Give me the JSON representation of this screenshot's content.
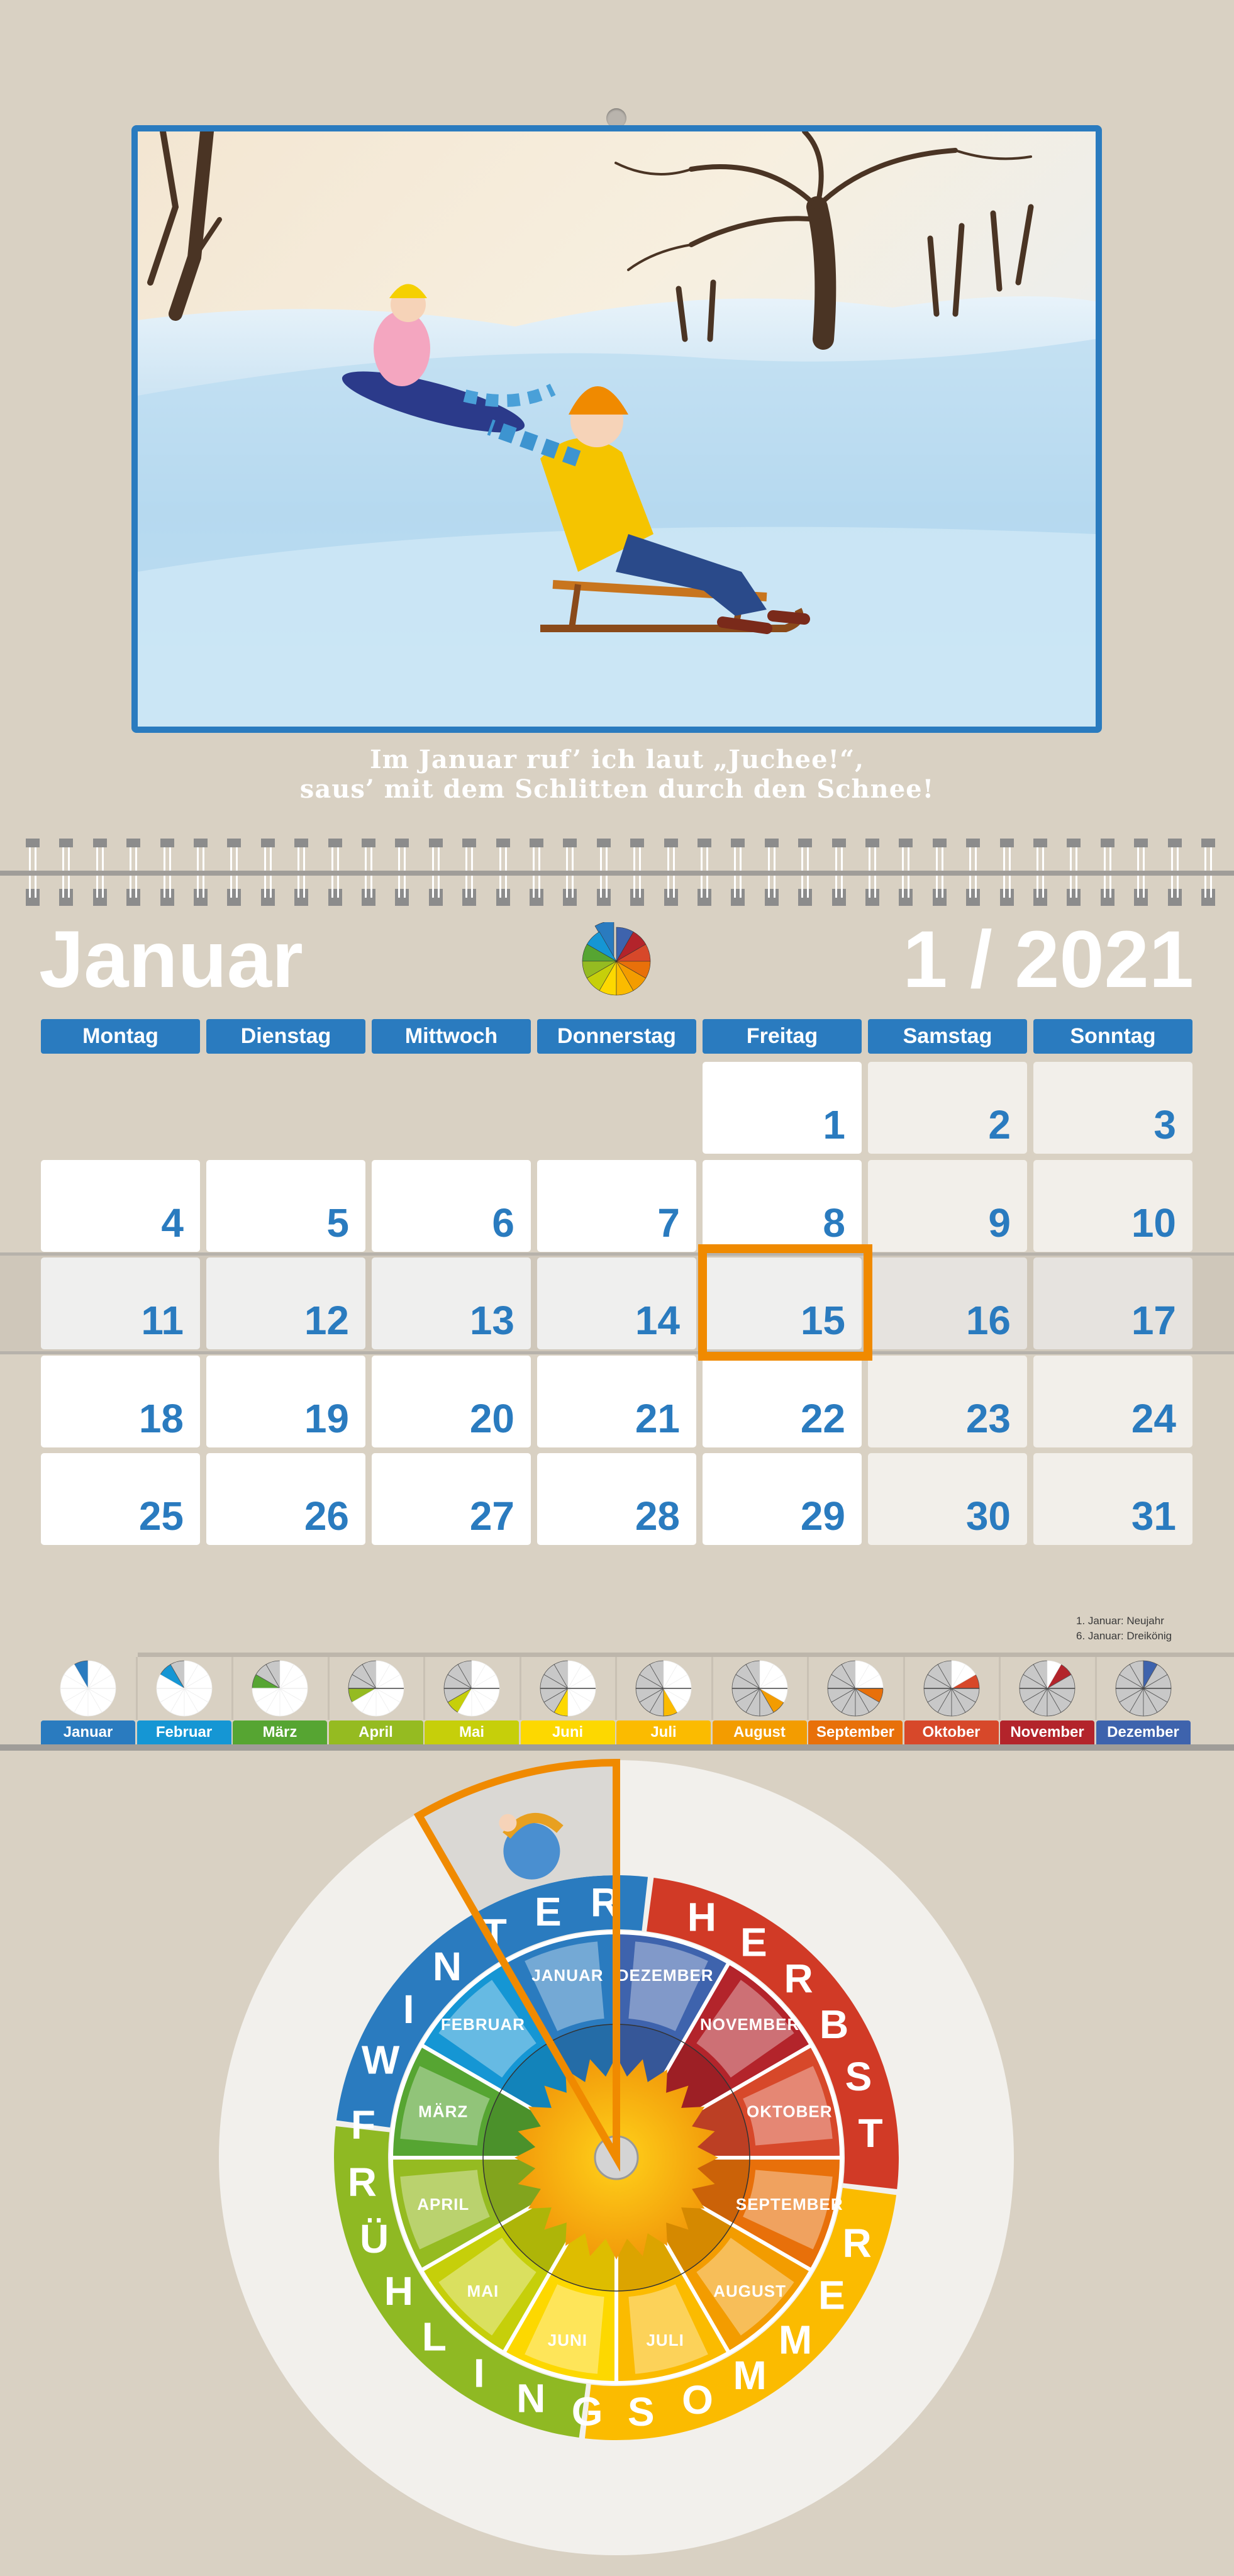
{
  "picture": {
    "description_icon": "winter-sledding-painting",
    "border_color": "#2a7bbf"
  },
  "caption": {
    "line1": "Im Januar ruf’ ich laut „Juchee!“,",
    "line2": "saus’ mit dem Schlitten durch den Schnee!"
  },
  "header": {
    "month": "Januar",
    "month_year": "1 / 2021"
  },
  "calendar": {
    "weekdays": [
      "Montag",
      "Dienstag",
      "Mittwoch",
      "Donnerstag",
      "Freitag",
      "Samstag",
      "Sonntag"
    ],
    "weeks": [
      [
        null,
        null,
        null,
        null,
        "1",
        "2",
        "3"
      ],
      [
        "4",
        "5",
        "6",
        "7",
        "8",
        "9",
        "10"
      ],
      [
        "11",
        "12",
        "13",
        "14",
        "15",
        "16",
        "17"
      ],
      [
        "18",
        "19",
        "20",
        "21",
        "22",
        "23",
        "24"
      ],
      [
        "25",
        "26",
        "27",
        "28",
        "29",
        "30",
        "31"
      ]
    ],
    "highlight_week_index": 2,
    "today": "15",
    "accent": "#2a7bbf",
    "today_color": "#f08a00"
  },
  "holidays": [
    "1. Januar: Neujahr",
    "6. Januar: Dreikönig"
  ],
  "month_strip": {
    "current_month_index": 0,
    "months": [
      {
        "label": "Januar",
        "color": "#2a7bbf"
      },
      {
        "label": "Februar",
        "color": "#1596d4"
      },
      {
        "label": "März",
        "color": "#56a532"
      },
      {
        "label": "April",
        "color": "#95bb21"
      },
      {
        "label": "Mai",
        "color": "#c6cf0a"
      },
      {
        "label": "Juni",
        "color": "#fdd800"
      },
      {
        "label": "Juli",
        "color": "#fbbb00"
      },
      {
        "label": "August",
        "color": "#f39c00"
      },
      {
        "label": "September",
        "color": "#e8700a"
      },
      {
        "label": "Oktober",
        "color": "#d7482a"
      },
      {
        "label": "November",
        "color": "#b3242b"
      },
      {
        "label": "Dezember",
        "color": "#3e63ad"
      }
    ]
  },
  "wheel": {
    "seasons": [
      {
        "label": "WINTER",
        "color": "#2a7bbf"
      },
      {
        "label": "HERBST",
        "color": "#d13a26"
      },
      {
        "label": "SOMMER",
        "color": "#fbbb00"
      },
      {
        "label": "FRÜHLING",
        "color": "#8fb923"
      }
    ],
    "months": [
      "JANUAR",
      "FEBRUAR",
      "MÄRZ",
      "APRIL",
      "MAI",
      "JUNI",
      "JULI",
      "AUGUST",
      "SEPTEMBER",
      "OKTOBER",
      "NOVEMBER",
      "DEZEMBER"
    ],
    "pointer_month_index": 0,
    "pointer_color": "#f08a00"
  }
}
